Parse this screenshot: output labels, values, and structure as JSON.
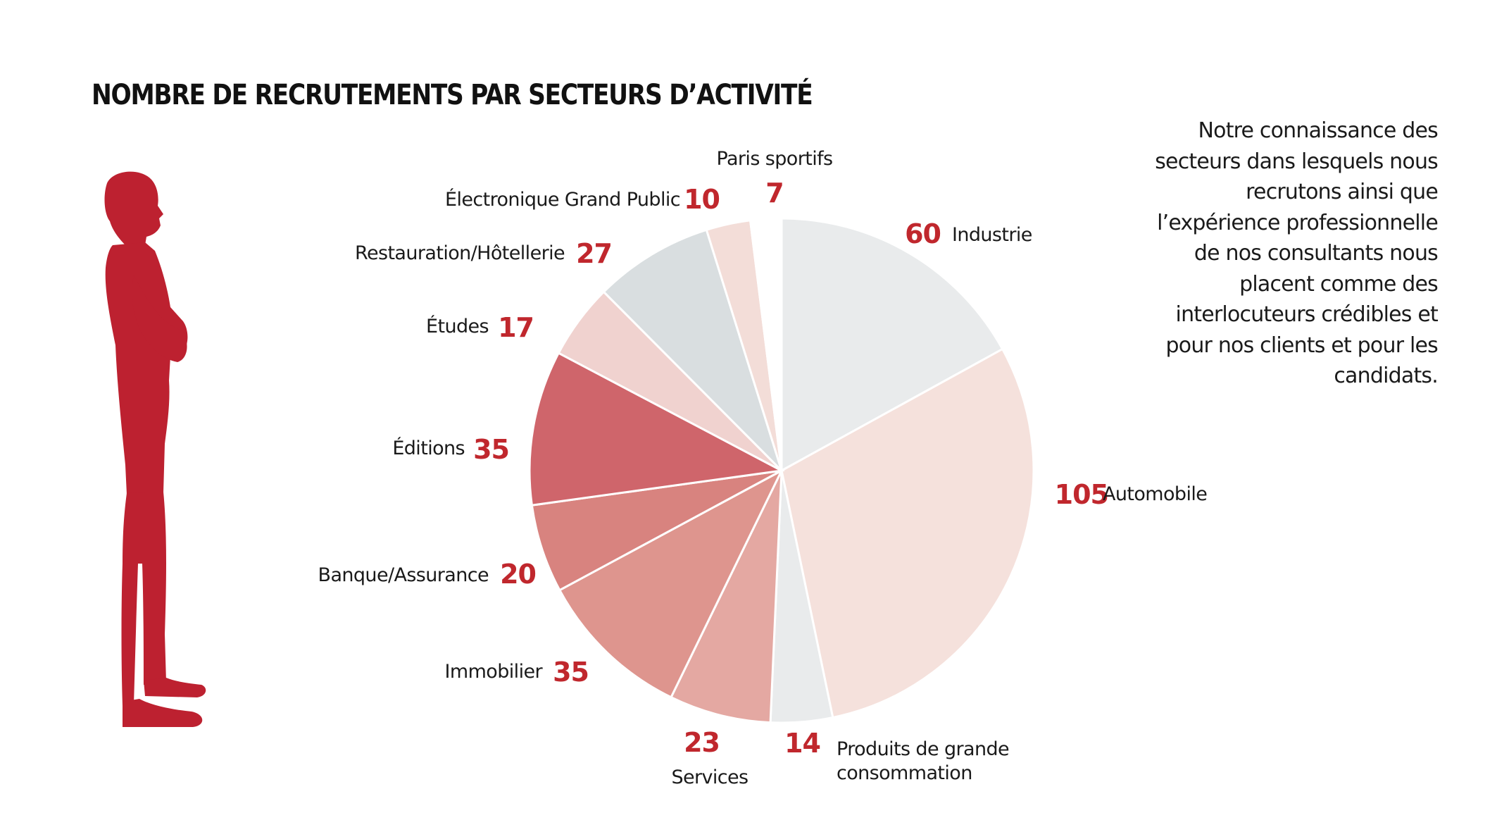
{
  "chart_data": {
    "type": "pie",
    "title": "NOMBRE DE RECRUTEMENTS PAR SECTEURS D’ACTIVITÉ",
    "slices": [
      {
        "name": "Industrie",
        "value": 60,
        "color": "#e9ebec"
      },
      {
        "name": "Automobile",
        "value": 105,
        "color": "#f5e1dc"
      },
      {
        "name": "Produits de grande consommation",
        "name_lines": [
          "Produits de grande",
          "consommation"
        ],
        "value": 14,
        "color": "#e9ebec"
      },
      {
        "name": "Services",
        "value": 23,
        "color": "#e4a8a2"
      },
      {
        "name": "Immobilier",
        "value": 35,
        "color": "#de958e"
      },
      {
        "name": "Banque/Assurance",
        "value": 20,
        "color": "#d8837f"
      },
      {
        "name": "Éditions",
        "value": 35,
        "color": "#cf656b"
      },
      {
        "name": "Études",
        "value": 17,
        "color": "#f0d2cf"
      },
      {
        "name": "Restauration/Hôtellerie",
        "value": 27,
        "color": "#d9dee0"
      },
      {
        "name": "Électronique Grand Public",
        "value": 10,
        "color": "#f3ddd8"
      },
      {
        "name": "Paris sportifs",
        "value": 7,
        "color": "#ffffff"
      }
    ]
  },
  "description_text": "Notre connaissance des secteurs dans lesquels nous recrutons ainsi que l’expérience professionnelle de nos consultants nous placent comme des interlocuteurs crédibles et pour nos clients et pour les candidats.",
  "colors": {
    "accent": "#c0272d",
    "text": "#1a1a1a",
    "silhouette": "#bd2130"
  },
  "icons": {
    "figure": "businessman-silhouette-icon"
  }
}
